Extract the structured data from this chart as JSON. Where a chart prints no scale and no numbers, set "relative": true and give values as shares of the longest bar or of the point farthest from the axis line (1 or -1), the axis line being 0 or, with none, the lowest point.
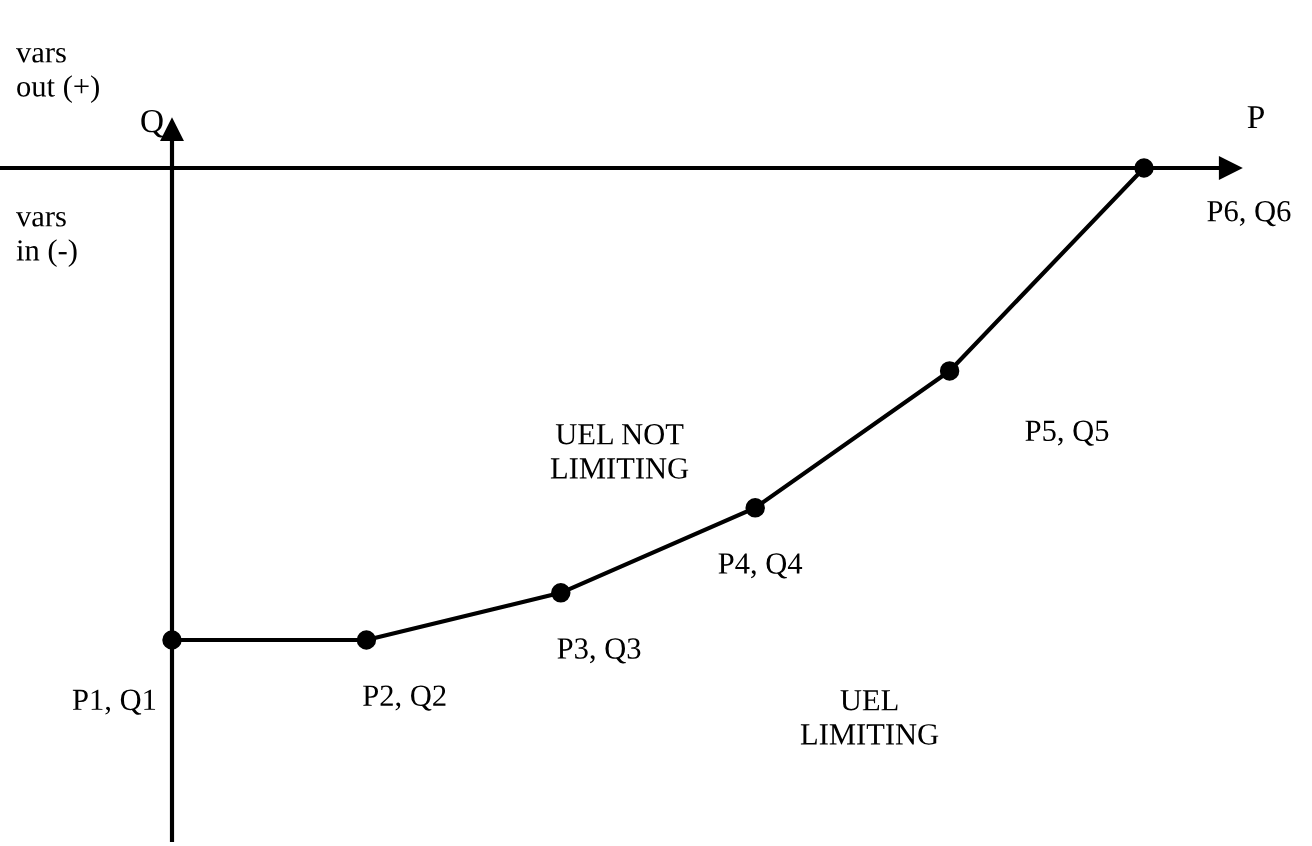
{
  "chart_data": {
    "type": "line",
    "relative": true,
    "xlabel": "P",
    "ylabel": "Q",
    "categories": [
      null,
      null,
      null,
      null,
      null,
      null
    ],
    "values": [
      -1.0,
      -1.0,
      -0.9,
      -0.72,
      -0.43,
      0.0
    ],
    "color": "#000000",
    "marker": "circle",
    "line_style": "solid",
    "annotations": [
      "vars out (+)",
      "vars in (-)",
      "UEL NOT LIMITING",
      "UEL LIMITING",
      "P1, Q1",
      "P2, Q2",
      "P3, Q3",
      "P4, Q4",
      "P5, Q5",
      "P6, Q6"
    ]
  }
}
